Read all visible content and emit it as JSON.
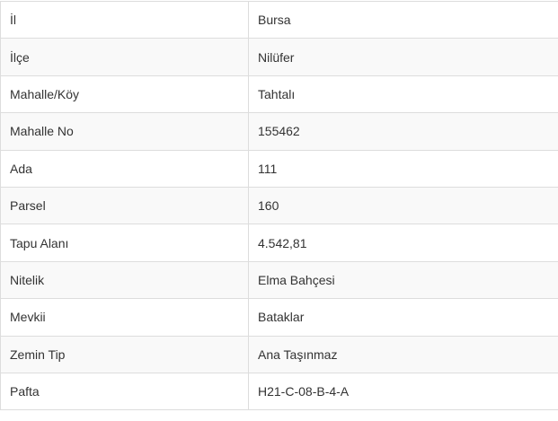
{
  "rows": [
    {
      "label": "İl",
      "value": "Bursa"
    },
    {
      "label": "İlçe",
      "value": "Nilüfer"
    },
    {
      "label": "Mahalle/Köy",
      "value": "Tahtalı"
    },
    {
      "label": "Mahalle No",
      "value": "155462"
    },
    {
      "label": "Ada",
      "value": "111"
    },
    {
      "label": "Parsel",
      "value": "160"
    },
    {
      "label": "Tapu Alanı",
      "value": "4.542,81"
    },
    {
      "label": "Nitelik",
      "value": "Elma Bahçesi"
    },
    {
      "label": "Mevkii",
      "value": "Bataklar"
    },
    {
      "label": "Zemin Tip",
      "value": "Ana Taşınmaz"
    },
    {
      "label": "Pafta",
      "value": "H21-C-08-B-4-A"
    }
  ]
}
